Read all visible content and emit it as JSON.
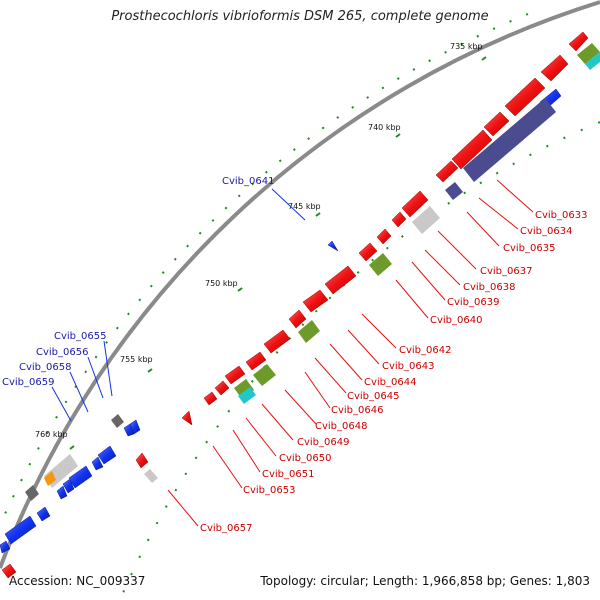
{
  "title": "Prosthecochloris vibrioformis DSM 265, complete genome",
  "footer": {
    "accession": "Accession: NC_009337",
    "summary": "Topology: circular; Length: 1,966,858 bp; Genes: 1,803"
  },
  "colors": {
    "forward_gene": "#ee1111",
    "reverse_gene": "#1133ee",
    "forward_label": "#cc0000",
    "reverse_label": "#1a1aa6",
    "backbone": "#8a8a8a",
    "tick": "#1f8a1f",
    "cog_olive": "#6e9a2a",
    "cog_purple": "#4b4b8f",
    "cog_cyan": "#22c7c7",
    "cog_gray": "#c9c9c9",
    "cog_dark": "#666666",
    "cog_orange": "#f5960f"
  },
  "scale_labels": [
    "735 kbp",
    "740 kbp",
    "745 kbp",
    "750 kbp",
    "755 kbp",
    "760 kbp"
  ],
  "forward_labels": [
    "Cvib_0633",
    "Cvib_0634",
    "Cvib_0635",
    "Cvib_0637",
    "Cvib_0638",
    "Cvib_0639",
    "Cvib_0640",
    "Cvib_0642",
    "Cvib_0643",
    "Cvib_0644",
    "Cvib_0645",
    "Cvib_0646",
    "Cvib_0648",
    "Cvib_0649",
    "Cvib_0650",
    "Cvib_0651",
    "Cvib_0653",
    "Cvib_0657"
  ],
  "reverse_labels": [
    "Cvib_0641",
    "Cvib_0655",
    "Cvib_0656",
    "Cvib_0658",
    "Cvib_0659"
  ]
}
